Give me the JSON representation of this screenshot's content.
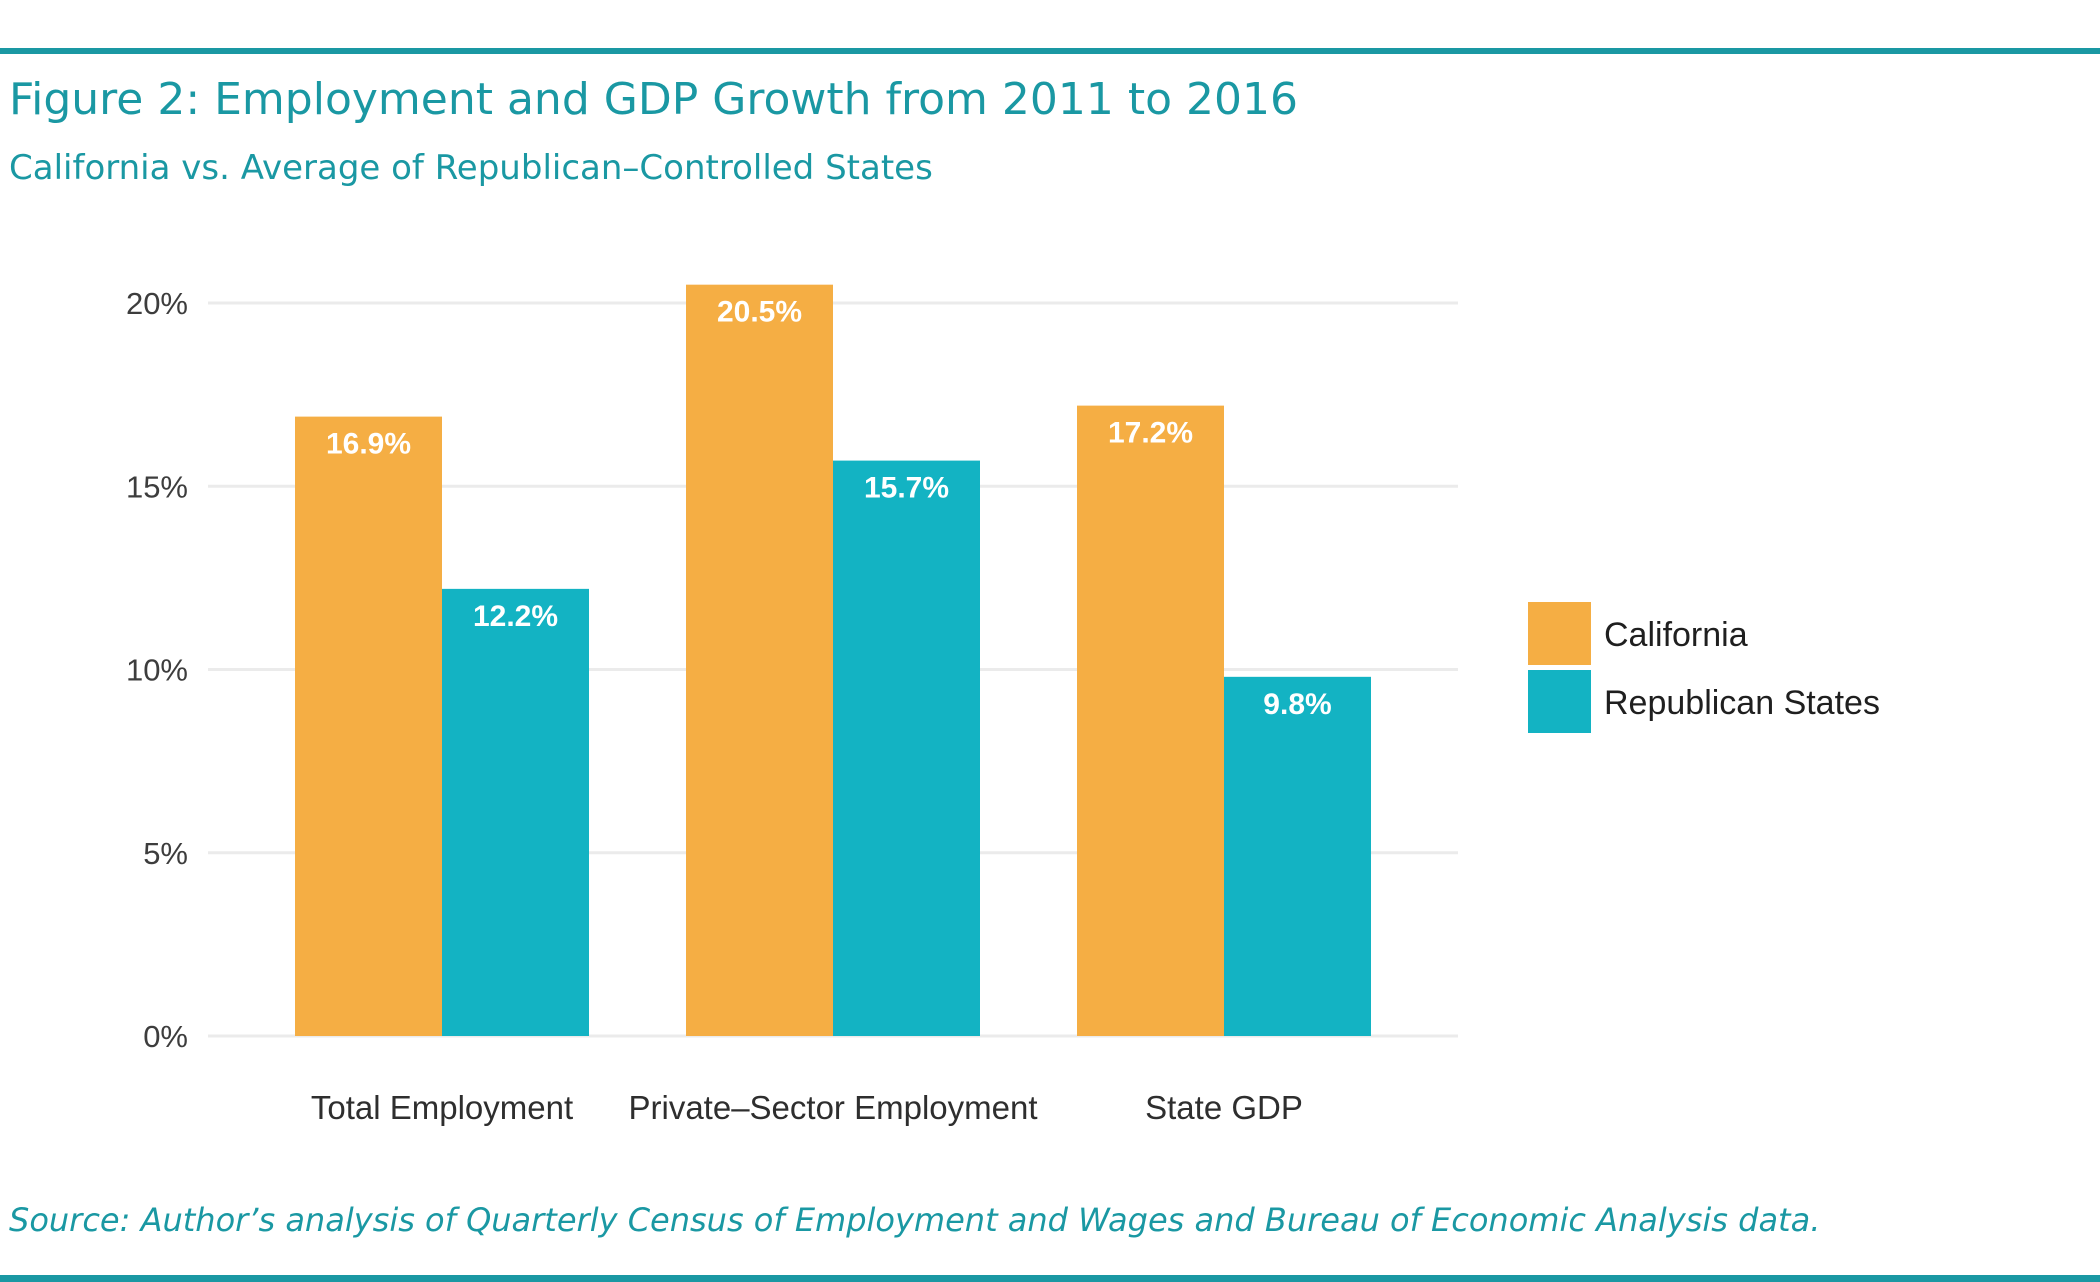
{
  "colors": {
    "accent": "#1a98a3",
    "california": "#f5ae44",
    "republican": "#13b3c3",
    "grid": "#ebebeb"
  },
  "header": {
    "title": "Figure 2: Employment and GDP Growth from 2011 to 2016",
    "subtitle": "California vs. Average of Republican–Controlled States"
  },
  "footer": {
    "source": "Source: Author’s analysis of Quarterly Census of Employment and Wages and Bureau of Economic Analysis data."
  },
  "chart_data": {
    "type": "bar",
    "categories": [
      "Total Employment",
      "Private–Sector Employment",
      "State GDP"
    ],
    "series": [
      {
        "name": "California",
        "values": [
          16.9,
          20.5,
          17.2
        ],
        "labels": [
          "16.9%",
          "20.5%",
          "17.2%"
        ]
      },
      {
        "name": "Republican States",
        "values": [
          12.2,
          15.7,
          9.8
        ],
        "labels": [
          "12.2%",
          "15.7%",
          "9.8%"
        ]
      }
    ],
    "ylim": [
      0,
      20
    ],
    "yticks": [
      0,
      5,
      10,
      15,
      20
    ],
    "ytick_labels": [
      "0%",
      "5%",
      "10%",
      "15%",
      "20%"
    ],
    "xlabel": "",
    "ylabel": "",
    "grid": true,
    "legend_position": "right"
  }
}
